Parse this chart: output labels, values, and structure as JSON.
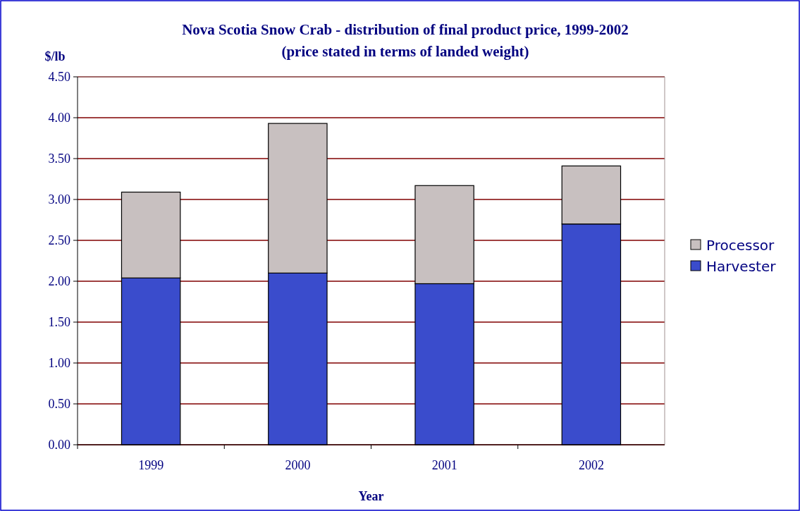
{
  "chart_data": {
    "type": "bar",
    "title": "Nova Scotia Snow Crab - distribution of final product price,  1999-2002",
    "subtitle": "(price stated in terms of landed weight)",
    "ylabel": "$/lb",
    "xlabel": "Year",
    "categories": [
      "1999",
      "2000",
      "2001",
      "2002"
    ],
    "stacked": true,
    "series": [
      {
        "name": "Harvester",
        "color": "#3a4ccc",
        "values": [
          2.04,
          2.1,
          1.97,
          2.7
        ]
      },
      {
        "name": "Processor",
        "color": "#c8c0c0",
        "values": [
          1.05,
          1.83,
          1.2,
          0.71
        ]
      }
    ],
    "ylim": [
      0,
      4.5
    ],
    "yticks": [
      {
        "value": 0,
        "label": "0.00"
      },
      {
        "value": 0.5,
        "label": "0.50"
      },
      {
        "value": 1,
        "label": "1.00"
      },
      {
        "value": 1.5,
        "label": "1.50"
      },
      {
        "value": 2,
        "label": "2.00"
      },
      {
        "value": 2.5,
        "label": "2.50"
      },
      {
        "value": 3,
        "label": "3.00"
      },
      {
        "value": 3.5,
        "label": "3.50"
      },
      {
        "value": 4,
        "label": "4.00"
      },
      {
        "value": 4.5,
        "label": "4.50"
      }
    ],
    "grid": "y",
    "legend": "right"
  }
}
